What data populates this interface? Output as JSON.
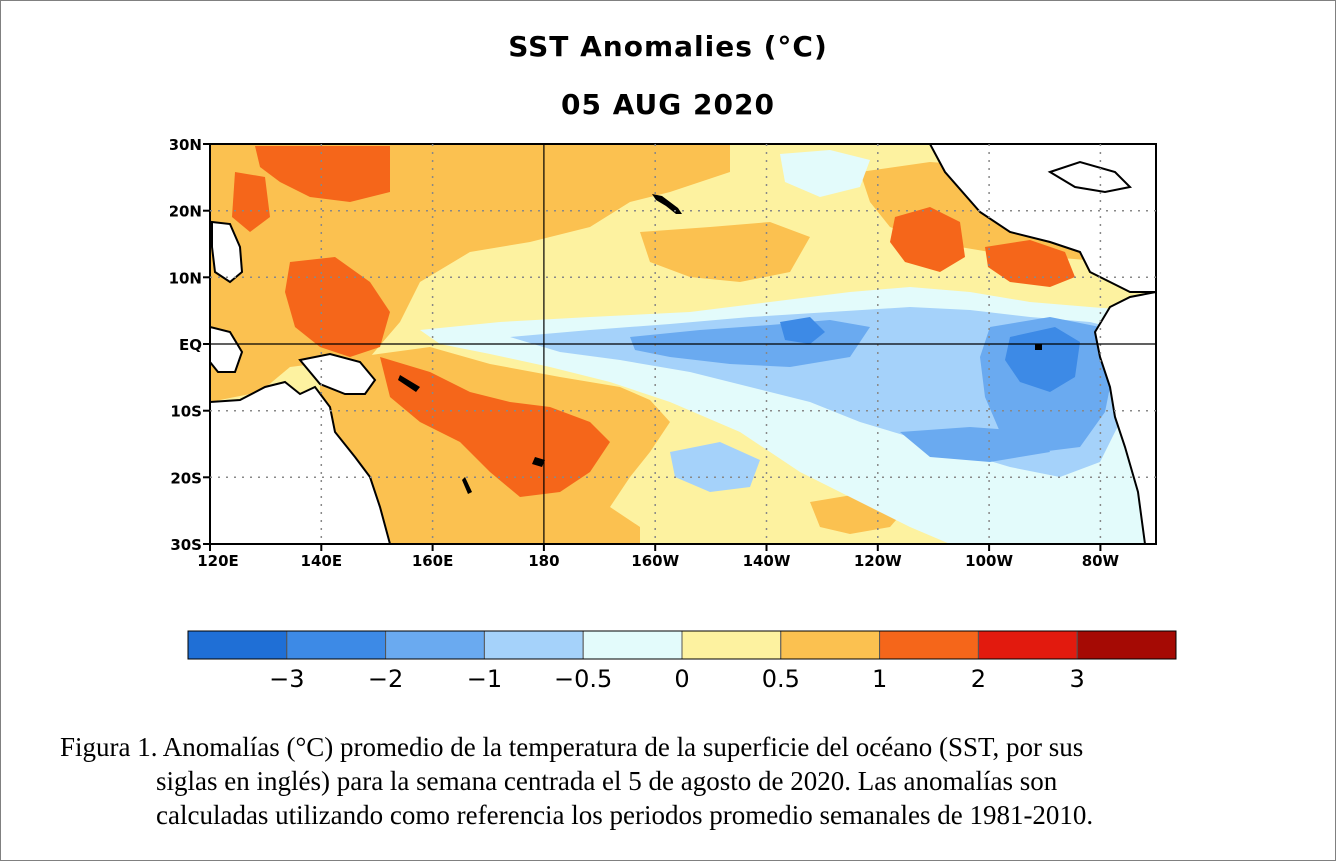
{
  "figure": {
    "title": "SST Anomalies (°C)",
    "date": "05 AUG 2020"
  },
  "map": {
    "lat_labels": [
      "30N",
      "20N",
      "10N",
      "EQ",
      "10S",
      "20S",
      "30S"
    ],
    "lon_labels": [
      "120E",
      "140E",
      "160E",
      "180",
      "160W",
      "140W",
      "120W",
      "100W",
      "80W"
    ],
    "lat_range": [
      -30,
      30
    ],
    "lon_range_deg_east": [
      120,
      290
    ],
    "grid": "dotted",
    "land_color": "#ffffff",
    "coast_color": "#000000"
  },
  "colorbar": {
    "tick_labels": [
      "−3",
      "−2",
      "−1",
      "−0.5",
      "0",
      "0.5",
      "1",
      "2",
      "3"
    ],
    "colors": [
      "#1f6fd6",
      "#3d8ae6",
      "#6aaaf0",
      "#a5d2fa",
      "#e3fbfb",
      "#fdf2a0",
      "#fbc150",
      "#f5661a",
      "#e21a0e",
      "#a50a04"
    ]
  },
  "caption": {
    "line1": "Figura 1. Anomalías (°C) promedio de la temperatura de la superficie del océano (SST, por sus",
    "line2": "siglas en inglés) para la semana centrada el 5 de agosto de 2020. Las anomalías son",
    "line3": "calculadas utilizando como referencia los periodos promedio semanales de 1981-2010."
  }
}
